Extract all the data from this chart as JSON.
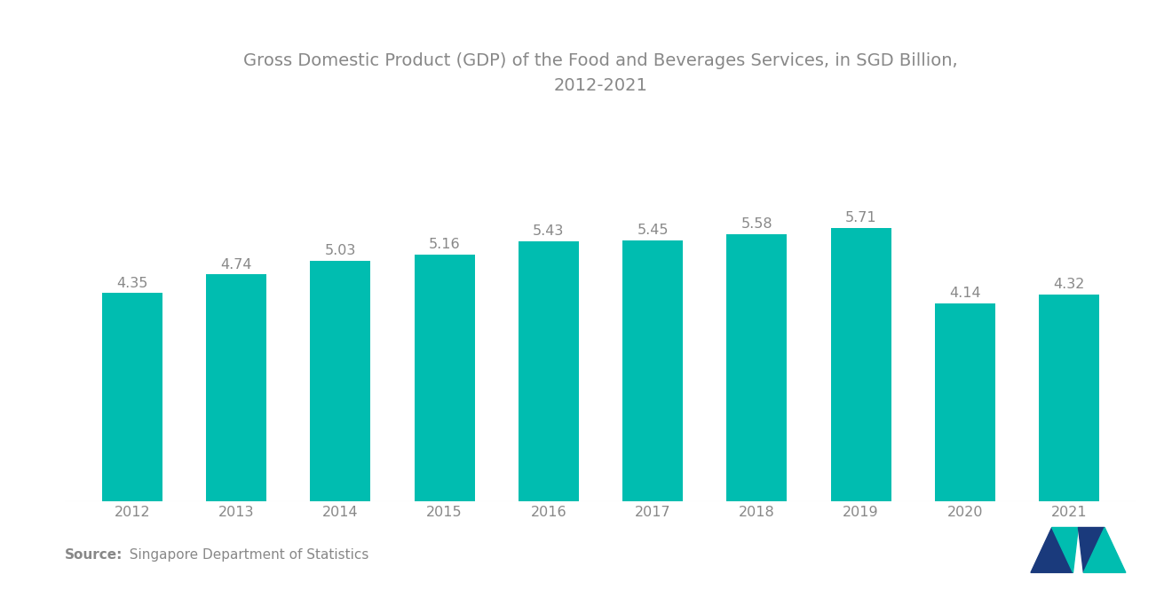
{
  "title_line1": "Gross Domestic Product (GDP) of the Food and Beverages Services, in SGD Billion,",
  "title_line2": "2012-2021",
  "years": [
    "2012",
    "2013",
    "2014",
    "2015",
    "2016",
    "2017",
    "2018",
    "2019",
    "2020",
    "2021"
  ],
  "values": [
    4.35,
    4.74,
    5.03,
    5.16,
    5.43,
    5.45,
    5.58,
    5.71,
    4.14,
    4.32
  ],
  "bar_color": "#00BDB0",
  "background_color": "#ffffff",
  "title_fontsize": 14,
  "label_fontsize": 11.5,
  "tick_fontsize": 11.5,
  "source_bold": "Source:",
  "source_rest": "  Singapore Department of Statistics",
  "ylim": [
    0,
    8.5
  ],
  "title_color": "#888888",
  "tick_color": "#888888",
  "source_fontsize": 11,
  "bar_width": 0.58
}
